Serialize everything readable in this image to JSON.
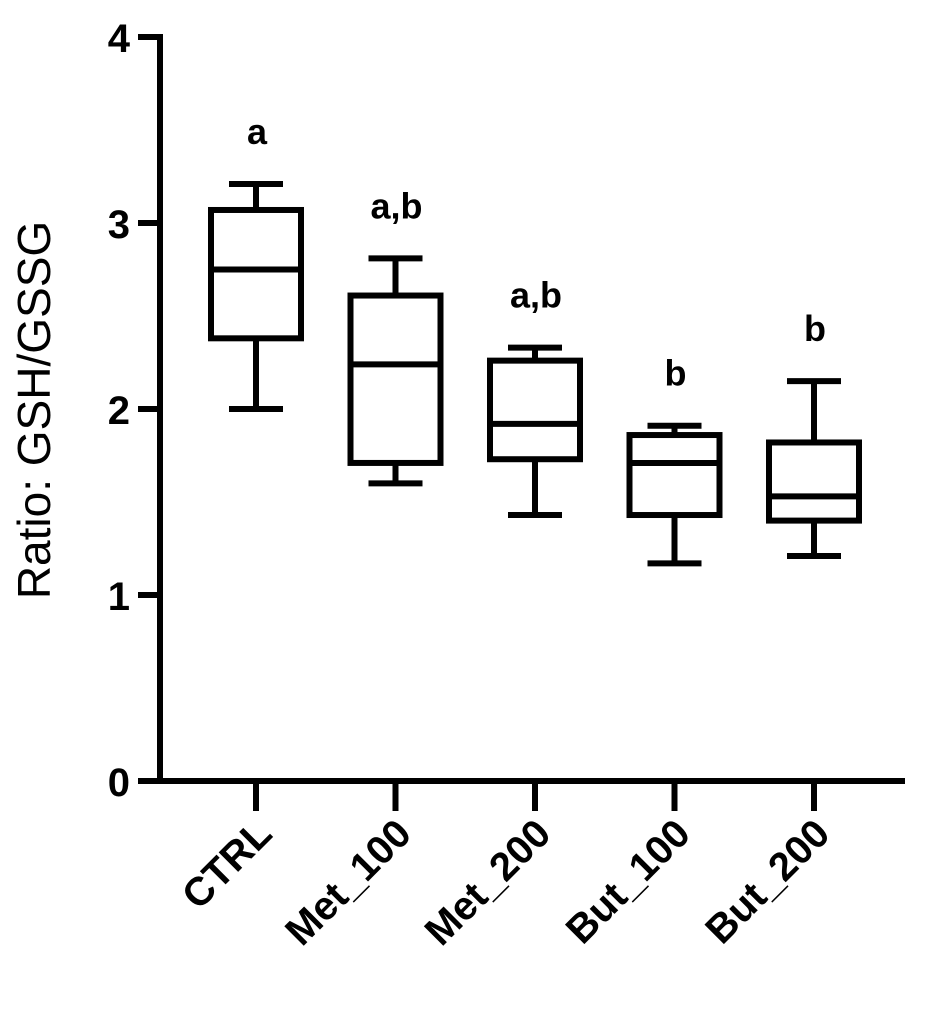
{
  "chart_data": {
    "type": "box",
    "xlabel": "",
    "ylabel": "Ratio: GSH/GSSG",
    "ylim": [
      0,
      4
    ],
    "yticks": [
      0,
      1,
      2,
      3,
      4
    ],
    "grid": false,
    "categories": [
      "CTRL",
      "Met_100",
      "Met_200",
      "But_100",
      "But_200"
    ],
    "boxes": [
      {
        "min": 2.0,
        "q1": 2.38,
        "median": 2.75,
        "q3": 3.07,
        "max": 3.21,
        "label": "a"
      },
      {
        "min": 1.6,
        "q1": 1.71,
        "median": 2.24,
        "q3": 2.61,
        "max": 2.81,
        "label": "a,b"
      },
      {
        "min": 1.43,
        "q1": 1.73,
        "median": 1.92,
        "q3": 2.26,
        "max": 2.33,
        "label": "a,b"
      },
      {
        "min": 1.17,
        "q1": 1.43,
        "median": 1.71,
        "q3": 1.86,
        "max": 1.91,
        "label": "b"
      },
      {
        "min": 1.21,
        "q1": 1.4,
        "median": 1.53,
        "q3": 1.82,
        "max": 2.15,
        "label": "b"
      }
    ],
    "colors": {
      "stroke": "#000000",
      "fill": "#ffffff"
    }
  }
}
